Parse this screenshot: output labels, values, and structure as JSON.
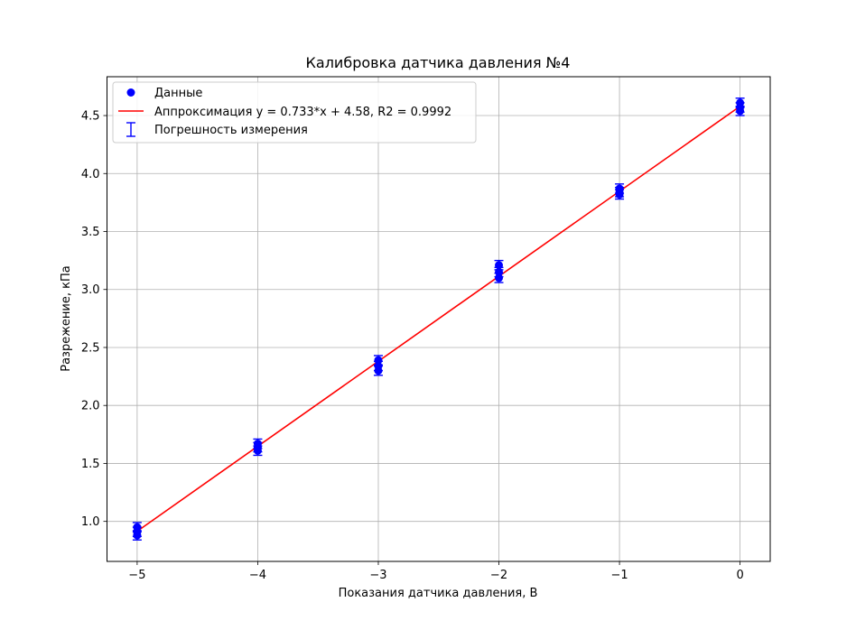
{
  "chart_data": {
    "type": "scatter",
    "title": "Калибровка датчика давления №4",
    "xlabel": "Показания датчика давления, В",
    "ylabel": "Разрежение, кПа",
    "xlim": [
      -5.25,
      0.25
    ],
    "ylim": [
      0.655,
      4.835
    ],
    "xticks": [
      -5,
      -4,
      -3,
      -2,
      -1,
      0
    ],
    "xtick_labels": [
      "−5",
      "−4",
      "−3",
      "−2",
      "−1",
      "0"
    ],
    "yticks": [
      1.0,
      1.5,
      2.0,
      2.5,
      3.0,
      3.5,
      4.0,
      4.5
    ],
    "ytick_labels": [
      "1.0",
      "1.5",
      "2.0",
      "2.5",
      "3.0",
      "3.5",
      "4.0",
      "4.5"
    ],
    "grid": true,
    "legend_position": "top-left",
    "colors": {
      "points": "#0000ff",
      "fit": "#ff0000",
      "errorbars": "#0000ff",
      "grid": "#b0b0b0"
    },
    "series": [
      {
        "name": "Данные",
        "kind": "points",
        "error": 0.04,
        "points": [
          {
            "x": -5,
            "y": 0.95
          },
          {
            "x": -5,
            "y": 0.91
          },
          {
            "x": -5,
            "y": 0.88
          },
          {
            "x": -4,
            "y": 1.67
          },
          {
            "x": -4,
            "y": 1.64
          },
          {
            "x": -4,
            "y": 1.61
          },
          {
            "x": -3,
            "y": 2.39
          },
          {
            "x": -3,
            "y": 2.34
          },
          {
            "x": -3,
            "y": 2.3
          },
          {
            "x": -2,
            "y": 3.21
          },
          {
            "x": -2,
            "y": 3.15
          },
          {
            "x": -2,
            "y": 3.1
          },
          {
            "x": -1,
            "y": 3.87
          },
          {
            "x": -1,
            "y": 3.84
          },
          {
            "x": -1,
            "y": 3.82
          },
          {
            "x": 0,
            "y": 4.61
          },
          {
            "x": 0,
            "y": 4.57
          },
          {
            "x": 0,
            "y": 4.54
          }
        ]
      },
      {
        "name": "Аппроксимация y = 0.733*x + 4.58, R2 = 0.9992",
        "kind": "line",
        "x": [
          -5,
          0
        ],
        "y": [
          0.915,
          4.58
        ]
      },
      {
        "name": "Погрешность измерения",
        "kind": "errorbar"
      }
    ]
  }
}
